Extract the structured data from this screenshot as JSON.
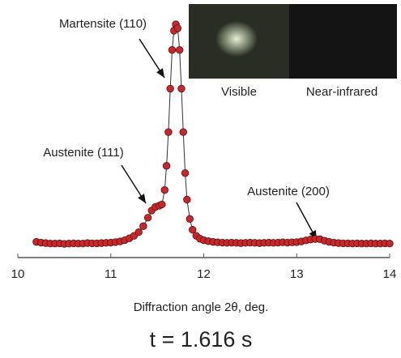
{
  "chart_data": {
    "type": "line",
    "xlabel": "Diffraction angle 2θ, deg.",
    "title": "t = 1.616 s",
    "annotations": [
      "Martensite (110)",
      "Austenite (111)",
      "Austenite (200)"
    ],
    "inset_labels": [
      "Visible",
      "Near-infrared"
    ],
    "xlim": [
      10,
      14
    ],
    "xticks": [
      10,
      11,
      12,
      13,
      14
    ],
    "ylim": [
      0,
      100
    ],
    "marker_color": "#c8282c",
    "line_color": "#333333",
    "x": [
      10.2,
      10.25,
      10.3,
      10.35,
      10.4,
      10.45,
      10.5,
      10.55,
      10.6,
      10.65,
      10.7,
      10.75,
      10.8,
      10.85,
      10.9,
      10.95,
      11,
      11.05,
      11.1,
      11.15,
      11.2,
      11.25,
      11.3,
      11.35,
      11.4,
      11.44,
      11.48,
      11.52,
      11.55,
      11.58,
      11.6,
      11.62,
      11.64,
      11.66,
      11.68,
      11.7,
      11.72,
      11.74,
      11.76,
      11.78,
      11.8,
      11.82,
      11.85,
      11.88,
      11.92,
      11.96,
      12,
      12.05,
      12.1,
      12.15,
      12.2,
      12.25,
      12.3,
      12.35,
      12.4,
      12.45,
      12.5,
      12.55,
      12.6,
      12.65,
      12.7,
      12.75,
      12.8,
      12.85,
      12.9,
      12.95,
      13,
      13.05,
      13.1,
      13.15,
      13.2,
      13.25,
      13.3,
      13.35,
      13.4,
      13.45,
      13.5,
      13.55,
      13.6,
      13.65,
      13.7,
      13.75,
      13.8,
      13.85,
      13.9,
      13.95,
      14
    ],
    "values": [
      6.5,
      6.2,
      6,
      5.8,
      5.8,
      5.9,
      5.7,
      5.8,
      5.9,
      5.8,
      5.8,
      6,
      5.9,
      5.9,
      6,
      6.1,
      6.2,
      6.4,
      6.7,
      7.2,
      8,
      9,
      10.5,
      13,
      16.5,
      19.5,
      21,
      21.5,
      22,
      28,
      38,
      52,
      70,
      86,
      94,
      96.6,
      95,
      86,
      70,
      52,
      35,
      24,
      16,
      11.5,
      9,
      7.8,
      7.2,
      6.8,
      6.5,
      6.3,
      6.2,
      6.1,
      6.2,
      6.1,
      6,
      6.1,
      6.2,
      6.1,
      6,
      6.1,
      6.2,
      6.1,
      6.2,
      6.3,
      6.2,
      6.3,
      6.4,
      6.7,
      7.1,
      7.5,
      7.7,
      7.6,
      7,
      6.5,
      6.2,
      6,
      5.9,
      5.9,
      5.8,
      5.9,
      5.8,
      5.8,
      5.9,
      5.8,
      5.8,
      5.9,
      5.8
    ]
  }
}
